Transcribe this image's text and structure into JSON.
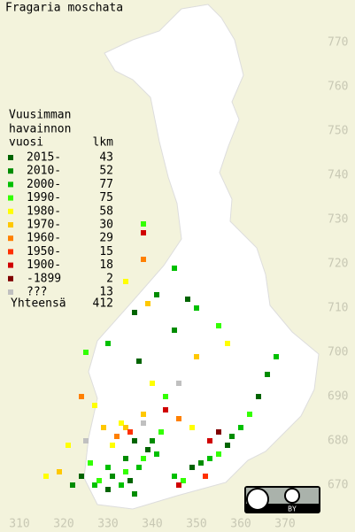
{
  "title": "Fragaria moschata",
  "legend": {
    "header": [
      "Vuusimman",
      "havainnon"
    ],
    "year_heading": "vuosi",
    "count_heading": "lkm",
    "entries": [
      {
        "label": "2015-",
        "count": 43,
        "color": "#006400"
      },
      {
        "label": "2010-",
        "count": 52,
        "color": "#008c00"
      },
      {
        "label": "2000-",
        "count": 77,
        "color": "#00c000"
      },
      {
        "label": "1990-",
        "count": 75,
        "color": "#33ff00"
      },
      {
        "label": "1980-",
        "count": 58,
        "color": "#ffff00"
      },
      {
        "label": "1970-",
        "count": 30,
        "color": "#ffc800"
      },
      {
        "label": "1960-",
        "count": 29,
        "color": "#ff8000"
      },
      {
        "label": "1950-",
        "count": 15,
        "color": "#ff3000"
      },
      {
        "label": "1900-",
        "count": 18,
        "color": "#d00000"
      },
      {
        "label": "-1899",
        "count": 2,
        "color": "#800000"
      },
      {
        "label": "???",
        "count": 13,
        "color": "#c0c0c0"
      }
    ],
    "total_label": "Yhteensä",
    "total": 412
  },
  "northing_ticks": [
    670,
    680,
    690,
    700,
    710,
    720,
    730,
    740,
    750,
    760,
    770
  ],
  "easting_ticks": [
    310,
    320,
    330,
    340,
    350,
    360,
    370
  ],
  "license_label": "BY",
  "observations": [
    [
      327,
      670,
      2
    ],
    [
      328,
      671,
      3
    ],
    [
      330,
      669,
      0
    ],
    [
      331,
      672,
      1
    ],
    [
      333,
      670,
      2
    ],
    [
      334,
      673,
      3
    ],
    [
      335,
      671,
      0
    ],
    [
      336,
      668,
      1
    ],
    [
      337,
      674,
      2
    ],
    [
      338,
      676,
      3
    ],
    [
      339,
      678,
      0
    ],
    [
      340,
      680,
      1
    ],
    [
      341,
      677,
      2
    ],
    [
      342,
      682,
      3
    ],
    [
      336,
      680,
      0
    ],
    [
      334,
      676,
      1
    ],
    [
      330,
      674,
      2
    ],
    [
      326,
      675,
      3
    ],
    [
      324,
      672,
      0
    ],
    [
      322,
      670,
      1
    ],
    [
      345,
      672,
      2
    ],
    [
      347,
      671,
      3
    ],
    [
      349,
      674,
      0
    ],
    [
      351,
      675,
      1
    ],
    [
      353,
      676,
      2
    ],
    [
      355,
      677,
      3
    ],
    [
      357,
      679,
      0
    ],
    [
      358,
      681,
      1
    ],
    [
      360,
      683,
      2
    ],
    [
      362,
      686,
      3
    ],
    [
      364,
      690,
      0
    ],
    [
      366,
      695,
      1
    ],
    [
      368,
      699,
      2
    ],
    [
      343,
      690,
      3
    ],
    [
      337,
      698,
      0
    ],
    [
      345,
      705,
      1
    ],
    [
      350,
      710,
      2
    ],
    [
      355,
      706,
      3
    ],
    [
      341,
      713,
      1
    ],
    [
      336,
      709,
      0
    ],
    [
      330,
      702,
      2
    ],
    [
      325,
      700,
      3
    ],
    [
      338,
      729,
      3
    ],
    [
      345,
      719,
      2
    ],
    [
      348,
      712,
      0
    ],
    [
      333,
      684,
      4
    ],
    [
      334,
      683,
      5
    ],
    [
      332,
      681,
      6
    ],
    [
      335,
      682,
      7
    ],
    [
      331,
      679,
      4
    ],
    [
      329,
      683,
      5
    ],
    [
      327,
      688,
      4
    ],
    [
      324,
      690,
      6
    ],
    [
      321,
      679,
      4
    ],
    [
      319,
      673,
      5
    ],
    [
      316,
      672,
      4
    ],
    [
      338,
      686,
      5
    ],
    [
      343,
      687,
      8
    ],
    [
      346,
      685,
      6
    ],
    [
      349,
      683,
      4
    ],
    [
      353,
      680,
      8
    ],
    [
      355,
      682,
      9
    ],
    [
      352,
      672,
      7
    ],
    [
      346,
      670,
      8
    ],
    [
      340,
      693,
      4
    ],
    [
      350,
      699,
      5
    ],
    [
      357,
      702,
      4
    ],
    [
      338,
      721,
      6
    ],
    [
      338,
      727,
      8
    ],
    [
      339,
      711,
      5
    ],
    [
      334,
      716,
      4
    ],
    [
      346,
      693,
      10
    ],
    [
      338,
      684,
      10
    ],
    [
      325,
      680,
      10
    ]
  ]
}
